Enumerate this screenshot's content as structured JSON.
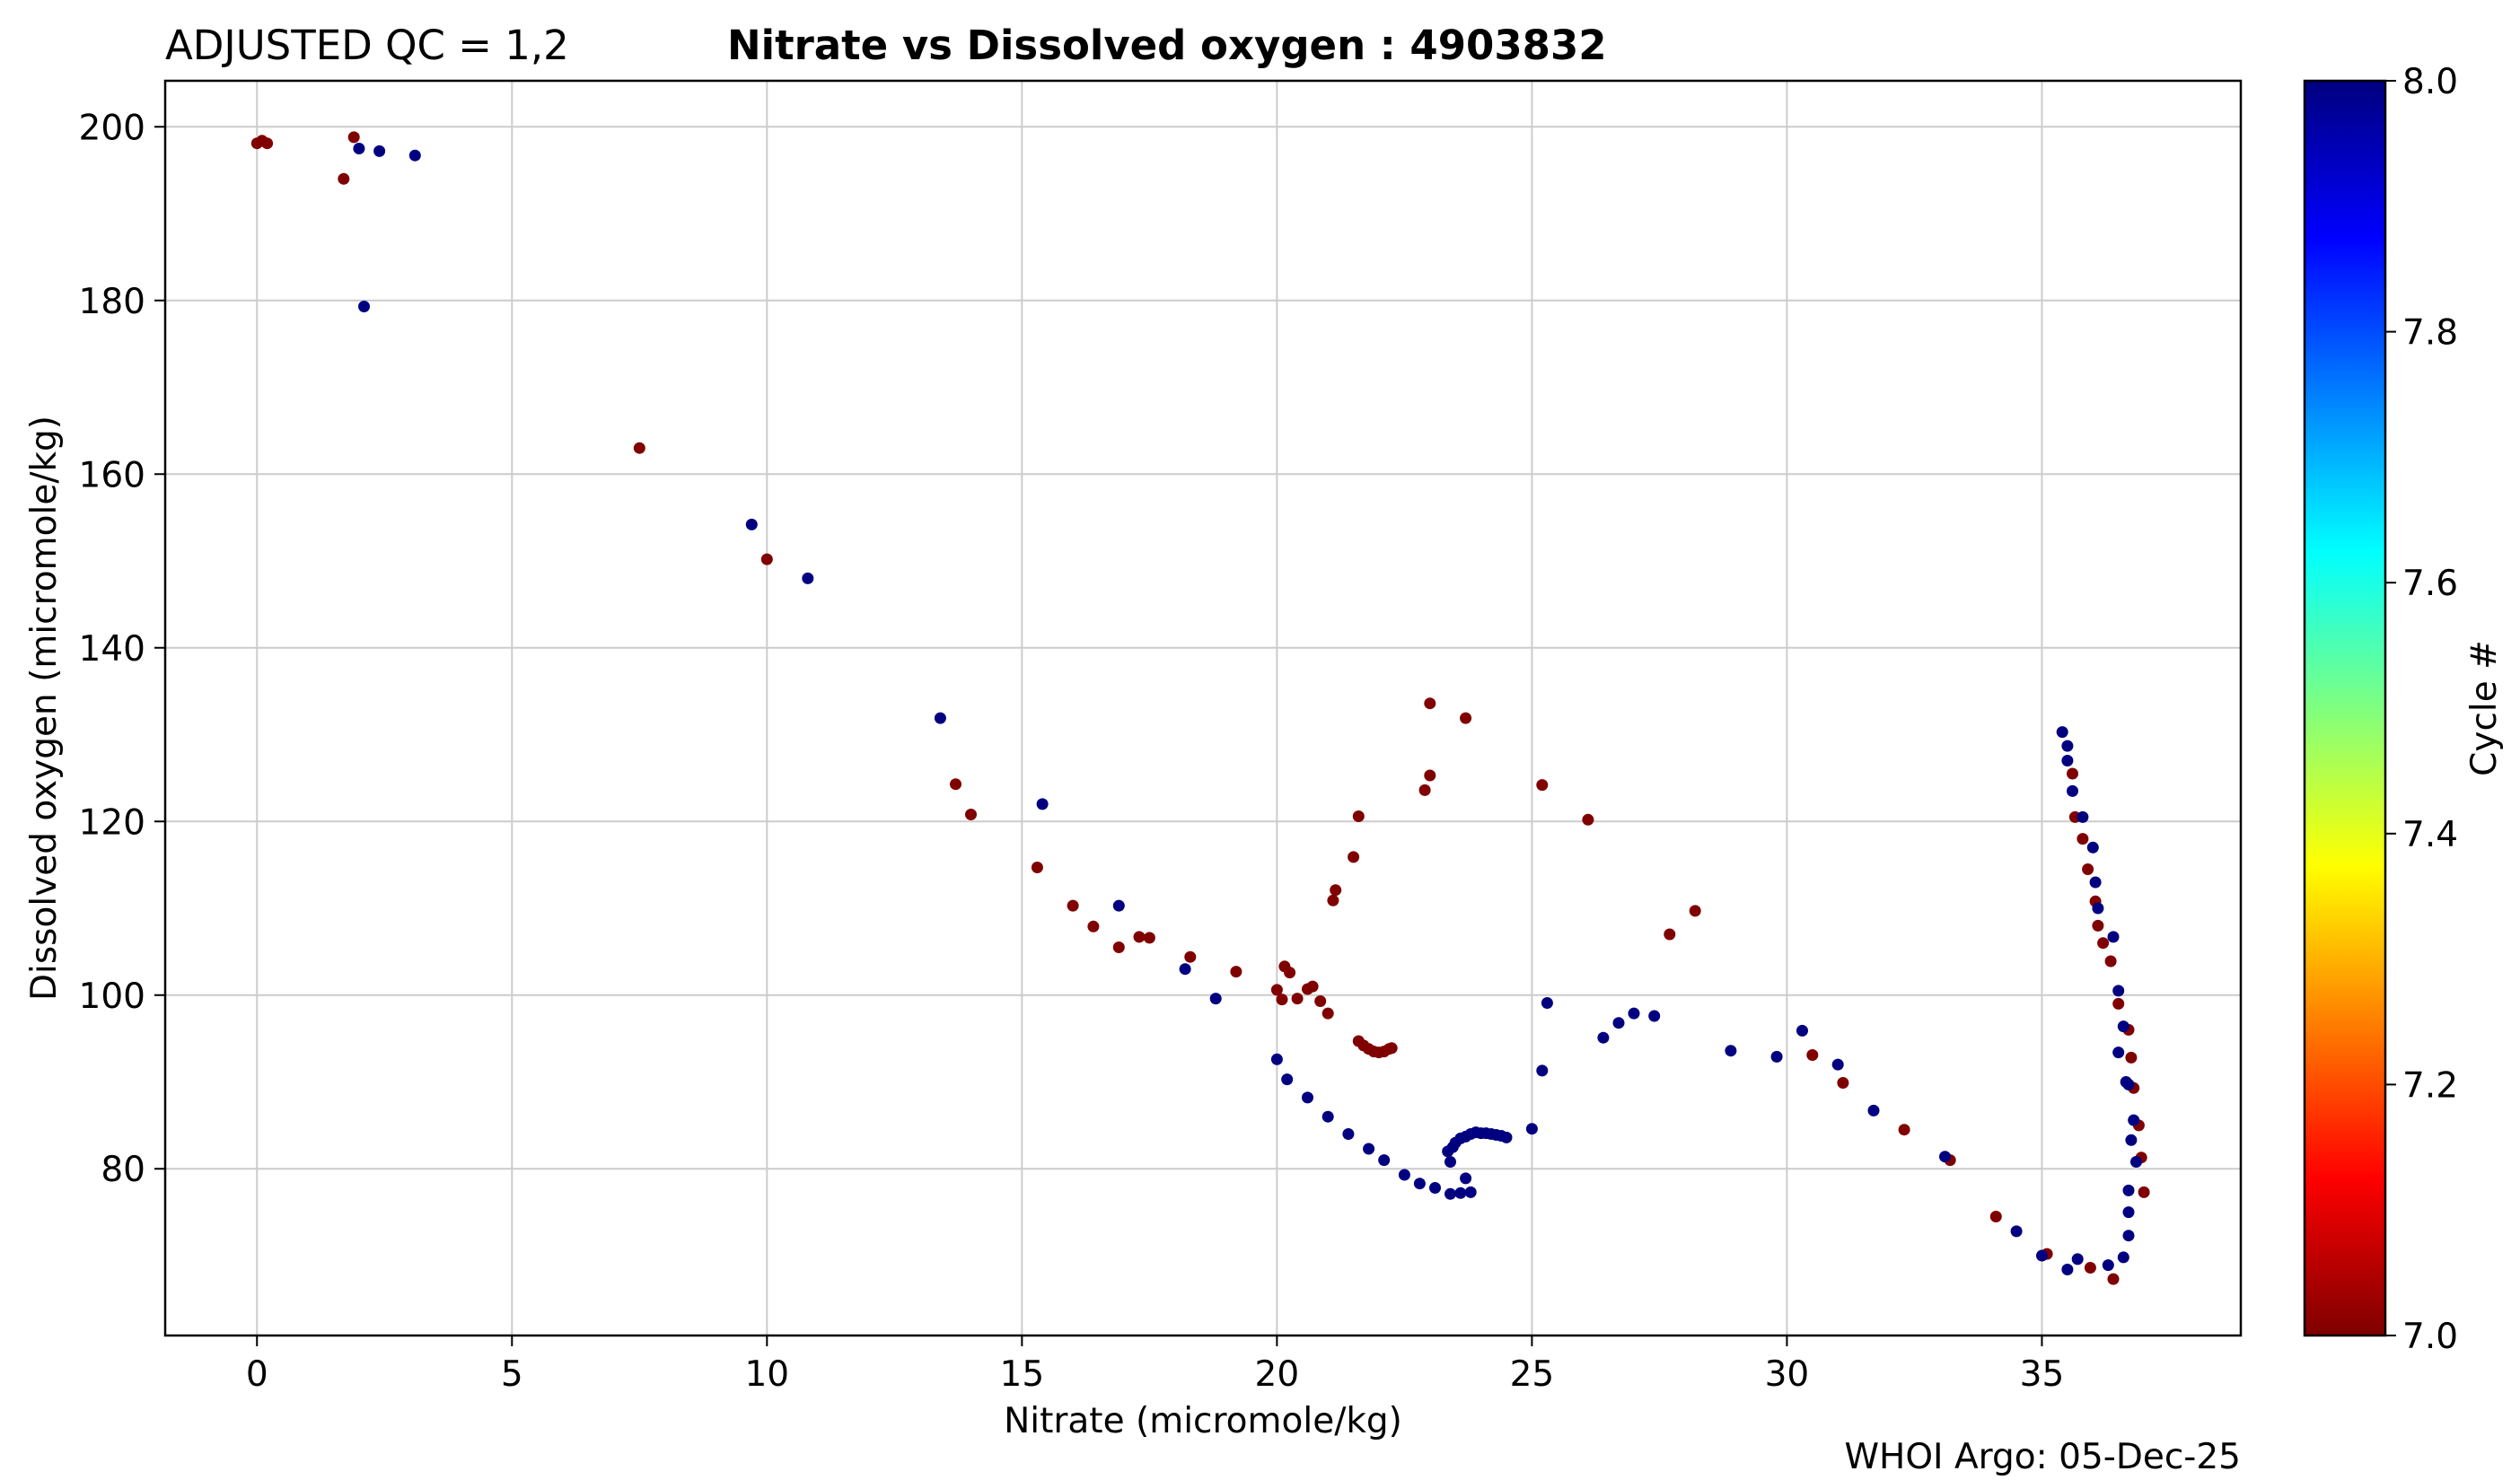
{
  "header": {
    "qc_label": "ADJUSTED QC = 1,2",
    "title": "Nitrate vs Dissolved oxygen : 4903832"
  },
  "footer": {
    "credit": "WHOI Argo: 05-Dec-25"
  },
  "chart_data": {
    "type": "scatter",
    "title": "Nitrate vs Dissolved oxygen : 4903832",
    "xlabel": "Nitrate  (micromole/kg)",
    "ylabel": "Dissolved oxygen  (micromole/kg)",
    "xlim": [
      -1.8,
      38.9
    ],
    "ylim": [
      60.8,
      205.3
    ],
    "xticks": [
      0,
      5,
      10,
      15,
      20,
      25,
      30,
      35
    ],
    "yticks": [
      80,
      100,
      120,
      140,
      160,
      180,
      200
    ],
    "grid": true,
    "colorbar": {
      "label": "Cycle #",
      "range": [
        7.0,
        8.0
      ],
      "ticks": [
        "7.0",
        "7.2",
        "7.4",
        "7.6",
        "7.8",
        "8.0"
      ],
      "colormap": "jet",
      "colors": [
        "#7f0000",
        "#ff0000",
        "#ff7f00",
        "#ffff00",
        "#7fff7f",
        "#00ffff",
        "#007fff",
        "#0000ff",
        "#00007f"
      ]
    },
    "series": [
      {
        "name": "Cycle 7",
        "color": "#800000",
        "x": [
          0.0,
          0.1,
          0.2,
          1.7,
          1.9,
          7.5,
          10.0,
          13.7,
          14.0,
          15.3,
          16.0,
          16.4,
          16.9,
          17.3,
          17.5,
          18.3,
          19.2,
          20.0,
          20.1,
          20.15,
          20.25,
          20.4,
          20.6,
          20.7,
          20.85,
          21.0,
          21.1,
          21.15,
          21.5,
          21.6,
          21.6,
          21.7,
          21.8,
          21.9,
          22.0,
          22.1,
          22.2,
          22.25,
          22.9,
          23.0,
          23.0,
          23.7,
          25.2,
          26.1,
          27.7,
          28.2,
          30.5,
          31.1,
          32.3,
          33.2,
          34.1,
          35.1,
          35.6,
          35.65,
          35.8,
          35.9,
          36.05,
          36.1,
          36.2,
          36.35,
          36.5,
          36.7,
          36.75,
          36.8,
          36.9,
          36.95,
          37.0,
          36.4,
          35.95
        ],
        "y": [
          198.1,
          198.4,
          198.1,
          194.0,
          198.8,
          163.0,
          150.2,
          124.3,
          120.8,
          114.7,
          110.3,
          107.9,
          105.5,
          106.7,
          106.6,
          104.4,
          102.7,
          100.6,
          99.5,
          103.3,
          102.6,
          99.6,
          100.7,
          101.0,
          99.3,
          97.9,
          110.9,
          112.1,
          115.9,
          120.6,
          94.7,
          94.2,
          93.8,
          93.5,
          93.4,
          93.5,
          93.8,
          93.9,
          123.6,
          125.3,
          133.6,
          131.9,
          124.2,
          120.2,
          107.0,
          109.7,
          93.1,
          89.9,
          84.5,
          81.0,
          74.5,
          70.2,
          125.5,
          120.5,
          118.0,
          114.5,
          110.8,
          108.0,
          106.0,
          103.9,
          99.0,
          96.0,
          92.8,
          89.3,
          85.0,
          81.3,
          77.3,
          67.3,
          68.6
        ]
      },
      {
        "name": "Cycle 8",
        "color": "#000080",
        "x": [
          2.0,
          2.1,
          2.4,
          3.1,
          9.7,
          10.8,
          13.4,
          15.4,
          16.9,
          18.2,
          18.8,
          20.0,
          20.2,
          20.6,
          21.0,
          21.4,
          21.8,
          22.1,
          22.5,
          22.8,
          23.1,
          23.35,
          23.4,
          23.45,
          23.5,
          23.6,
          23.7,
          23.8,
          23.9,
          24.0,
          24.1,
          24.2,
          24.3,
          24.4,
          24.5,
          23.6,
          23.7,
          23.8,
          23.4,
          25.0,
          25.2,
          25.3,
          26.4,
          26.7,
          27.0,
          27.4,
          28.9,
          29.8,
          30.3,
          31.0,
          31.7,
          33.1,
          34.5,
          35.0,
          35.4,
          35.5,
          35.5,
          35.6,
          35.8,
          36.0,
          36.05,
          36.1,
          36.4,
          36.5,
          36.5,
          36.6,
          36.65,
          36.7,
          36.75,
          36.8,
          36.85,
          36.7,
          36.7,
          36.7,
          36.6,
          35.5,
          35.7,
          36.3
        ],
        "y": [
          197.5,
          179.3,
          197.2,
          196.7,
          154.2,
          148.0,
          131.9,
          122.0,
          110.3,
          103.0,
          99.6,
          92.6,
          90.3,
          88.2,
          86.0,
          84.0,
          82.3,
          81.0,
          79.3,
          78.3,
          77.8,
          82.0,
          80.8,
          82.5,
          83.0,
          83.5,
          83.7,
          84.0,
          84.2,
          84.1,
          84.1,
          84.0,
          83.9,
          83.8,
          83.6,
          77.2,
          78.9,
          77.3,
          77.1,
          84.6,
          91.3,
          99.1,
          95.1,
          96.8,
          97.9,
          97.6,
          93.6,
          92.9,
          95.9,
          92.0,
          86.7,
          81.4,
          72.8,
          70.0,
          130.3,
          127.0,
          128.7,
          123.5,
          120.5,
          117.0,
          113.0,
          110.0,
          106.7,
          100.5,
          93.4,
          96.4,
          90.0,
          89.7,
          83.3,
          85.6,
          80.8,
          77.5,
          75.0,
          72.3,
          69.8,
          68.4,
          69.6,
          68.9
        ]
      }
    ]
  }
}
